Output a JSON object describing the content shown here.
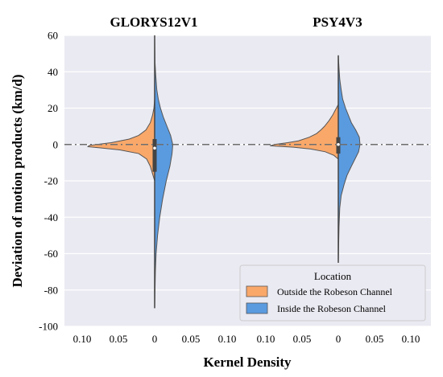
{
  "chart_data": {
    "type": "violin",
    "ylabel": "Deviation of motion products (km/d)",
    "xlabel": "Kernel Density",
    "ylim": [
      -100,
      60
    ],
    "yticks": [
      -100,
      -80,
      -60,
      -40,
      -20,
      0,
      20,
      40,
      60
    ],
    "density_ticks": [
      "0.10",
      "0.05",
      "0",
      "0.05",
      "0.10"
    ],
    "reference_line_y": 0,
    "grid": true,
    "legend": {
      "title": "Location",
      "placement": "lower-right",
      "entries": [
        {
          "label": "Outside the Robeson Channel",
          "color": "#F9A86A"
        },
        {
          "label": "Inside the Robeson Channel",
          "color": "#5A9BE0"
        }
      ]
    },
    "panels": [
      {
        "title": "GLORYS12V1",
        "left": {
          "name": "Outside the Robeson Channel",
          "profile": [
            [
              -20,
              0.0
            ],
            [
              -16,
              0.003
            ],
            [
              -12,
              0.006
            ],
            [
              -8,
              0.011
            ],
            [
              -5,
              0.022
            ],
            [
              -3,
              0.048
            ],
            [
              -2,
              0.072
            ],
            [
              -1.2,
              0.092
            ],
            [
              -0.5,
              0.09
            ],
            [
              1,
              0.06
            ],
            [
              3,
              0.035
            ],
            [
              5,
              0.022
            ],
            [
              8,
              0.012
            ],
            [
              12,
              0.006
            ],
            [
              16,
              0.003
            ],
            [
              20,
              0.001
            ],
            [
              25,
              0.0
            ]
          ]
        },
        "right": {
          "name": "Inside the Robeson Channel",
          "profile": [
            [
              -90,
              0.0
            ],
            [
              -80,
              0.0005
            ],
            [
              -70,
              0.001
            ],
            [
              -60,
              0.002
            ],
            [
              -50,
              0.004
            ],
            [
              -40,
              0.007
            ],
            [
              -30,
              0.011
            ],
            [
              -20,
              0.016
            ],
            [
              -12,
              0.021
            ],
            [
              -5,
              0.024
            ],
            [
              0,
              0.025
            ],
            [
              5,
              0.022
            ],
            [
              10,
              0.017
            ],
            [
              15,
              0.012
            ],
            [
              20,
              0.008
            ],
            [
              25,
              0.005
            ],
            [
              30,
              0.003
            ],
            [
              38,
              0.0015
            ],
            [
              45,
              0.0005
            ],
            [
              60,
              0.0
            ]
          ]
        },
        "box": {
          "q1": -15,
          "q3": 3,
          "median": -2,
          "whisker_low": -90,
          "whisker_high": 60
        }
      },
      {
        "title": "PSY4V3",
        "left": {
          "name": "Outside the Robeson Channel",
          "profile": [
            [
              -8,
              0.0
            ],
            [
              -6,
              0.006
            ],
            [
              -4,
              0.018
            ],
            [
              -2.5,
              0.038
            ],
            [
              -1.5,
              0.062
            ],
            [
              -0.7,
              0.094
            ],
            [
              0,
              0.088
            ],
            [
              1,
              0.07
            ],
            [
              2,
              0.055
            ],
            [
              4,
              0.04
            ],
            [
              6,
              0.03
            ],
            [
              8,
              0.024
            ],
            [
              10,
              0.019
            ],
            [
              13,
              0.013
            ],
            [
              16,
              0.008
            ],
            [
              19,
              0.004
            ],
            [
              22,
              0.0
            ]
          ]
        },
        "right": {
          "name": "Inside the Robeson Channel",
          "profile": [
            [
              -65,
              0.0
            ],
            [
              -55,
              0.0005
            ],
            [
              -45,
              0.001
            ],
            [
              -35,
              0.002
            ],
            [
              -28,
              0.004
            ],
            [
              -22,
              0.008
            ],
            [
              -17,
              0.012
            ],
            [
              -12,
              0.018
            ],
            [
              -8,
              0.023
            ],
            [
              -4,
              0.028
            ],
            [
              0,
              0.03
            ],
            [
              4,
              0.029
            ],
            [
              8,
              0.024
            ],
            [
              12,
              0.018
            ],
            [
              16,
              0.014
            ],
            [
              20,
              0.01
            ],
            [
              25,
              0.006
            ],
            [
              30,
              0.004
            ],
            [
              36,
              0.002
            ],
            [
              42,
              0.001
            ],
            [
              49,
              0.0
            ]
          ]
        },
        "box": {
          "q1": -5,
          "q3": 4,
          "median": 0,
          "whisker_low": -65,
          "whisker_high": 49
        }
      }
    ]
  }
}
